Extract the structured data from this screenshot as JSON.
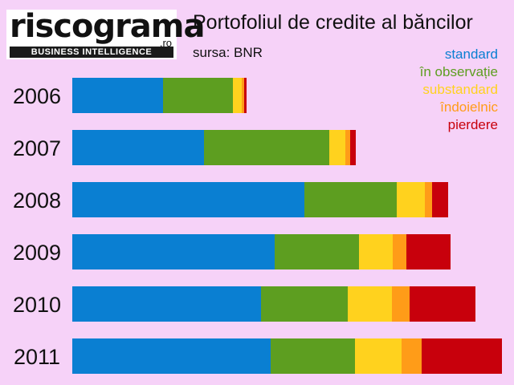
{
  "logo": {
    "brand": "riscograma",
    "domain": ".ro",
    "tagline": "BUSINESS INTELLIGENCE"
  },
  "chart_data": {
    "type": "bar",
    "orientation": "horizontal",
    "stacked": true,
    "title": "Portofoliul de credite al băncilor",
    "subtitle": "sursa: BNR",
    "categories": [
      "2006",
      "2007",
      "2008",
      "2009",
      "2010",
      "2011"
    ],
    "series": [
      {
        "name": "standard",
        "color": "#0a7fd2",
        "values": [
          113,
          164,
          289,
          252,
          235,
          247
        ]
      },
      {
        "name": "în observație",
        "color": "#5d9e20",
        "values": [
          87,
          156,
          115,
          105,
          108,
          105
        ]
      },
      {
        "name": "substandard",
        "color": "#ffd21e",
        "values": [
          11,
          20,
          35,
          42,
          55,
          58
        ]
      },
      {
        "name": "îndoielnic",
        "color": "#ff9c18",
        "values": [
          3,
          6,
          9,
          17,
          22,
          25
        ]
      },
      {
        "name": "pierdere",
        "color": "#c8000c",
        "values": [
          3,
          7,
          20,
          55,
          82,
          100
        ]
      }
    ],
    "legend_position": "top-right",
    "xaxis": "none",
    "grid": false
  }
}
